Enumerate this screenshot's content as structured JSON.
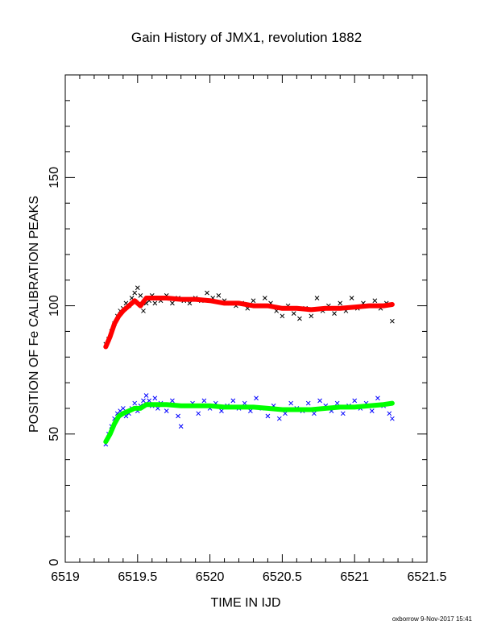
{
  "chart_data": {
    "type": "scatter",
    "title": "Gain History of JMX1, revolution 1882",
    "xlabel": "TIME IN IJD",
    "ylabel": "POSITION OF Fe CALIBRATION PEAKS",
    "xlim": [
      6519,
      6521.5
    ],
    "ylim": [
      0,
      190
    ],
    "x_ticks": [
      6519,
      6519.5,
      6520,
      6520.5,
      6521,
      6521.5
    ],
    "x_tick_labels": [
      "6519",
      "6519.5",
      "6520",
      "6520.5",
      "6521",
      "6521.5"
    ],
    "y_ticks": [
      0,
      50,
      100,
      150
    ],
    "y_tick_labels": [
      "0",
      "50",
      "100",
      "150"
    ],
    "grid": false,
    "legend": "none",
    "series": [
      {
        "kind": "scatter",
        "marker": "x",
        "color": "#000000",
        "points": [
          [
            6519.28,
            85
          ],
          [
            6519.3,
            87
          ],
          [
            6519.32,
            90
          ],
          [
            6519.34,
            93
          ],
          [
            6519.36,
            96
          ],
          [
            6519.38,
            98
          ],
          [
            6519.4,
            99
          ],
          [
            6519.42,
            101
          ],
          [
            6519.44,
            100
          ],
          [
            6519.46,
            103
          ],
          [
            6519.48,
            105
          ],
          [
            6519.5,
            107
          ],
          [
            6519.52,
            104
          ],
          [
            6519.54,
            98
          ],
          [
            6519.56,
            101
          ],
          [
            6519.58,
            102
          ],
          [
            6519.6,
            104
          ],
          [
            6519.62,
            101
          ],
          [
            6519.64,
            103
          ],
          [
            6519.66,
            102
          ],
          [
            6519.7,
            104
          ],
          [
            6519.74,
            101
          ],
          [
            6519.78,
            103
          ],
          [
            6519.82,
            102
          ],
          [
            6519.86,
            101
          ],
          [
            6519.9,
            103
          ],
          [
            6519.94,
            102
          ],
          [
            6519.98,
            105
          ],
          [
            6520.02,
            103
          ],
          [
            6520.06,
            104
          ],
          [
            6520.1,
            102
          ],
          [
            6520.14,
            101
          ],
          [
            6520.18,
            100
          ],
          [
            6520.22,
            101
          ],
          [
            6520.26,
            99
          ],
          [
            6520.3,
            102
          ],
          [
            6520.34,
            100
          ],
          [
            6520.38,
            103
          ],
          [
            6520.42,
            101
          ],
          [
            6520.46,
            98
          ],
          [
            6520.5,
            96
          ],
          [
            6520.54,
            100
          ],
          [
            6520.58,
            97
          ],
          [
            6520.62,
            95
          ],
          [
            6520.66,
            99
          ],
          [
            6520.7,
            96
          ],
          [
            6520.74,
            103
          ],
          [
            6520.78,
            98
          ],
          [
            6520.82,
            100
          ],
          [
            6520.86,
            97
          ],
          [
            6520.9,
            101
          ],
          [
            6520.94,
            98
          ],
          [
            6520.98,
            103
          ],
          [
            6521.02,
            99
          ],
          [
            6521.06,
            101
          ],
          [
            6521.1,
            100
          ],
          [
            6521.14,
            102
          ],
          [
            6521.18,
            99
          ],
          [
            6521.22,
            101
          ],
          [
            6521.26,
            94
          ]
        ]
      },
      {
        "kind": "scatter",
        "marker": "x",
        "color": "#0000ff",
        "points": [
          [
            6519.28,
            46
          ],
          [
            6519.3,
            50
          ],
          [
            6519.32,
            53
          ],
          [
            6519.34,
            56
          ],
          [
            6519.36,
            58
          ],
          [
            6519.38,
            59
          ],
          [
            6519.4,
            60
          ],
          [
            6519.42,
            57
          ],
          [
            6519.44,
            58
          ],
          [
            6519.46,
            60
          ],
          [
            6519.48,
            62
          ],
          [
            6519.5,
            59
          ],
          [
            6519.52,
            61
          ],
          [
            6519.54,
            63
          ],
          [
            6519.56,
            65
          ],
          [
            6519.58,
            63
          ],
          [
            6519.6,
            61
          ],
          [
            6519.62,
            64
          ],
          [
            6519.64,
            60
          ],
          [
            6519.66,
            62
          ],
          [
            6519.7,
            59
          ],
          [
            6519.74,
            63
          ],
          [
            6519.78,
            57
          ],
          [
            6519.8,
            53
          ],
          [
            6519.84,
            61
          ],
          [
            6519.88,
            62
          ],
          [
            6519.92,
            58
          ],
          [
            6519.96,
            63
          ],
          [
            6520.0,
            60
          ],
          [
            6520.04,
            62
          ],
          [
            6520.08,
            59
          ],
          [
            6520.12,
            61
          ],
          [
            6520.16,
            63
          ],
          [
            6520.2,
            60
          ],
          [
            6520.24,
            62
          ],
          [
            6520.28,
            59
          ],
          [
            6520.32,
            64
          ],
          [
            6520.36,
            60
          ],
          [
            6520.4,
            57
          ],
          [
            6520.44,
            61
          ],
          [
            6520.48,
            56
          ],
          [
            6520.52,
            58
          ],
          [
            6520.56,
            62
          ],
          [
            6520.6,
            60
          ],
          [
            6520.64,
            59
          ],
          [
            6520.68,
            62
          ],
          [
            6520.72,
            58
          ],
          [
            6520.76,
            63
          ],
          [
            6520.8,
            61
          ],
          [
            6520.84,
            59
          ],
          [
            6520.88,
            62
          ],
          [
            6520.92,
            58
          ],
          [
            6520.96,
            61
          ],
          [
            6521.0,
            63
          ],
          [
            6521.04,
            60
          ],
          [
            6521.08,
            62
          ],
          [
            6521.12,
            59
          ],
          [
            6521.16,
            64
          ],
          [
            6521.2,
            61
          ],
          [
            6521.24,
            58
          ],
          [
            6521.26,
            56
          ]
        ]
      },
      {
        "kind": "line",
        "color": "#ff0000",
        "points": [
          [
            6519.28,
            84
          ],
          [
            6519.31,
            88
          ],
          [
            6519.34,
            93
          ],
          [
            6519.37,
            96
          ],
          [
            6519.4,
            98
          ],
          [
            6519.44,
            100
          ],
          [
            6519.48,
            102
          ],
          [
            6519.52,
            100
          ],
          [
            6519.56,
            103
          ],
          [
            6519.62,
            103
          ],
          [
            6519.7,
            103
          ],
          [
            6519.8,
            102.5
          ],
          [
            6519.9,
            102.5
          ],
          [
            6520.0,
            102
          ],
          [
            6520.1,
            101
          ],
          [
            6520.2,
            101
          ],
          [
            6520.3,
            100
          ],
          [
            6520.4,
            100
          ],
          [
            6520.5,
            99
          ],
          [
            6520.6,
            99
          ],
          [
            6520.7,
            98.5
          ],
          [
            6520.8,
            99
          ],
          [
            6520.9,
            99
          ],
          [
            6521.0,
            99.5
          ],
          [
            6521.1,
            100
          ],
          [
            6521.2,
            100
          ],
          [
            6521.26,
            100.5
          ]
        ]
      },
      {
        "kind": "line",
        "color": "#00ff00",
        "points": [
          [
            6519.28,
            47
          ],
          [
            6519.31,
            50
          ],
          [
            6519.34,
            54
          ],
          [
            6519.37,
            57
          ],
          [
            6519.4,
            58
          ],
          [
            6519.44,
            59
          ],
          [
            6519.48,
            60
          ],
          [
            6519.52,
            60
          ],
          [
            6519.56,
            61.5
          ],
          [
            6519.62,
            61.5
          ],
          [
            6519.7,
            61.5
          ],
          [
            6519.8,
            61
          ],
          [
            6519.9,
            61
          ],
          [
            6520.0,
            61
          ],
          [
            6520.1,
            60.5
          ],
          [
            6520.2,
            60.5
          ],
          [
            6520.3,
            60.5
          ],
          [
            6520.4,
            60
          ],
          [
            6520.5,
            59.5
          ],
          [
            6520.6,
            59.5
          ],
          [
            6520.7,
            59.5
          ],
          [
            6520.8,
            60
          ],
          [
            6520.9,
            60.5
          ],
          [
            6521.0,
            60.5
          ],
          [
            6521.1,
            61
          ],
          [
            6521.2,
            61.5
          ],
          [
            6521.26,
            62
          ]
        ]
      }
    ]
  },
  "footer": "oxborrow  9-Nov-2017 15:41"
}
